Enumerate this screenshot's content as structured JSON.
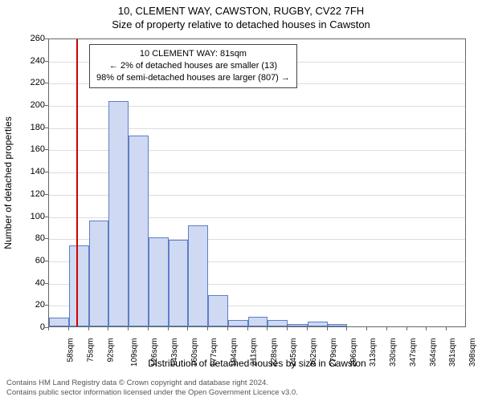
{
  "title_line1": "10, CLEMENT WAY, CAWSTON, RUGBY, CV22 7FH",
  "title_line2": "Size of property relative to detached houses in Cawston",
  "y_label": "Number of detached properties",
  "x_label": "Distribution of detached houses by size in Cawston",
  "chart": {
    "type": "histogram",
    "background_color": "#ffffff",
    "grid_color": "#dddddd",
    "axis_color": "#666666",
    "bar_fill": "#cfd9f2",
    "bar_stroke": "#5b7fc7",
    "marker_color": "#d00000",
    "ylim": [
      0,
      260
    ],
    "ytick_step": 20,
    "x_start": 58,
    "x_step": 17,
    "x_count": 21,
    "x_unit": "sqm",
    "marker_x": 81,
    "values": [
      8,
      73,
      95,
      203,
      172,
      80,
      78,
      91,
      28,
      6,
      9,
      6,
      2,
      4,
      2,
      0,
      0,
      0,
      0,
      0,
      0
    ],
    "title_fontsize": 13,
    "label_fontsize": 12,
    "tick_fontsize": 11,
    "xtick_fontsize": 10
  },
  "annotation": {
    "line1": "10 CLEMENT WAY: 81sqm",
    "line2": "← 2% of detached houses are smaller (13)",
    "line3": "98% of semi-detached houses are larger (807) →",
    "fontsize": 11
  },
  "footer_line1": "Contains HM Land Registry data © Crown copyright and database right 2024.",
  "footer_line2": "Contains public sector information licensed under the Open Government Licence v3.0."
}
